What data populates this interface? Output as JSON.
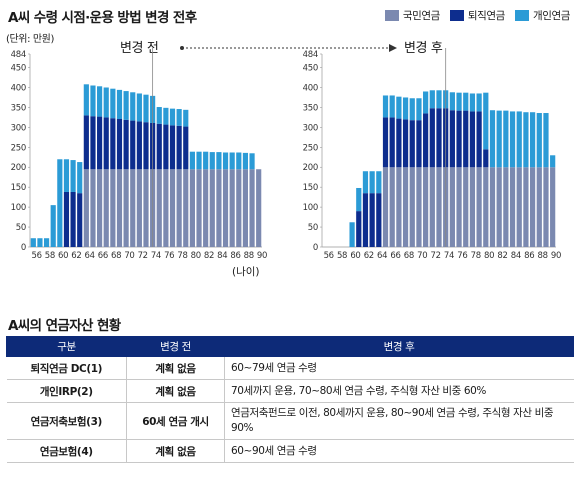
{
  "header": {
    "title": "A씨 수령 시점·운용 방법 변경 전후",
    "unit": "(단위: 만원)",
    "before_label": "변경 전",
    "after_label": "변경 후",
    "age_unit": "(나이)"
  },
  "legend": [
    {
      "label": "국민연금",
      "color": "#7b89b0"
    },
    {
      "label": "퇴직연금",
      "color": "#0d2d8e"
    },
    {
      "label": "개인연금",
      "color": "#2b9bd6"
    }
  ],
  "chart_data": [
    {
      "type": "bar",
      "stacked": true,
      "panel": "변경 전",
      "ylim": [
        0,
        484
      ],
      "yticks": [
        0,
        50,
        100,
        150,
        200,
        250,
        300,
        350,
        400,
        450,
        484
      ],
      "xticks": [
        "56",
        "58",
        "60",
        "62",
        "64",
        "66",
        "68",
        "70",
        "72",
        "74",
        "76",
        "78",
        "80",
        "82",
        "84",
        "86",
        "88",
        "90"
      ],
      "categories": [
        56,
        57,
        58,
        59,
        60,
        61,
        62,
        63,
        64,
        65,
        66,
        67,
        68,
        69,
        70,
        71,
        72,
        73,
        74,
        75,
        76,
        77,
        78,
        79,
        80,
        81,
        82,
        83,
        84,
        85,
        86,
        87,
        88,
        89,
        90
      ],
      "series": [
        {
          "name": "국민연금",
          "values": [
            0,
            0,
            0,
            0,
            0,
            0,
            0,
            0,
            195,
            195,
            195,
            195,
            195,
            195,
            195,
            195,
            195,
            195,
            195,
            195,
            195,
            195,
            195,
            195,
            195,
            195,
            195,
            195,
            195,
            195,
            195,
            195,
            195,
            195,
            195
          ]
        },
        {
          "name": "퇴직연금",
          "values": [
            0,
            0,
            0,
            0,
            0,
            138,
            138,
            135,
            135,
            133,
            132,
            130,
            128,
            126,
            124,
            122,
            120,
            118,
            116,
            114,
            112,
            110,
            109,
            107,
            0,
            0,
            0,
            0,
            0,
            0,
            0,
            0,
            0,
            0,
            0
          ]
        },
        {
          "name": "개인연금",
          "values": [
            22,
            22,
            22,
            105,
            220,
            82,
            80,
            78,
            78,
            77,
            76,
            75,
            74,
            73,
            72,
            71,
            70,
            69,
            68,
            42,
            42,
            42,
            42,
            42,
            44,
            44,
            44,
            43,
            43,
            42,
            42,
            42,
            41,
            40,
            0
          ]
        }
      ]
    },
    {
      "type": "bar",
      "stacked": true,
      "panel": "변경 후",
      "ylim": [
        0,
        484
      ],
      "yticks": [
        0,
        50,
        100,
        150,
        200,
        250,
        300,
        350,
        400,
        450,
        484
      ],
      "xticks": [
        "56",
        "58",
        "60",
        "62",
        "64",
        "66",
        "68",
        "70",
        "72",
        "74",
        "76",
        "78",
        "80",
        "82",
        "84",
        "86",
        "88",
        "90"
      ],
      "categories": [
        56,
        57,
        58,
        59,
        60,
        61,
        62,
        63,
        64,
        65,
        66,
        67,
        68,
        69,
        70,
        71,
        72,
        73,
        74,
        75,
        76,
        77,
        78,
        79,
        80,
        81,
        82,
        83,
        84,
        85,
        86,
        87,
        88,
        89,
        90
      ],
      "series": [
        {
          "name": "국민연금",
          "values": [
            0,
            0,
            0,
            0,
            0,
            0,
            0,
            0,
            0,
            200,
            200,
            200,
            200,
            200,
            200,
            200,
            200,
            200,
            200,
            200,
            200,
            200,
            200,
            200,
            200,
            200,
            200,
            200,
            200,
            200,
            200,
            200,
            200,
            200,
            200
          ]
        },
        {
          "name": "퇴직연금",
          "values": [
            0,
            0,
            0,
            0,
            0,
            90,
            135,
            135,
            135,
            125,
            125,
            122,
            120,
            118,
            118,
            135,
            148,
            148,
            148,
            143,
            142,
            142,
            140,
            140,
            45,
            0,
            0,
            0,
            0,
            0,
            0,
            0,
            0,
            0,
            0
          ]
        },
        {
          "name": "개인연금",
          "values": [
            0,
            0,
            0,
            0,
            62,
            58,
            55,
            55,
            55,
            55,
            55,
            55,
            55,
            55,
            55,
            55,
            45,
            45,
            45,
            45,
            45,
            45,
            45,
            45,
            142,
            143,
            142,
            142,
            140,
            140,
            138,
            138,
            136,
            136,
            30
          ]
        }
      ]
    }
  ],
  "table": {
    "headers": [
      "구분",
      "변경 전",
      "변경 후"
    ],
    "rows": [
      {
        "name": "퇴직연금 DC(1)",
        "before": "계획 없음",
        "after": "60~79세 연금 수령"
      },
      {
        "name": "개인IRP(2)",
        "before": "계획 없음",
        "after": "70세까지 운용, 70~80세 연금 수령, 주식형 자산 비중 60%"
      },
      {
        "name": "연금저축보험(3)",
        "before": "60세 연금 개시",
        "after": "연금저축펀드로 이전, 80세까지 운용, 80~90세 연금 수령, 주식형 자산 비중 90%"
      },
      {
        "name": "연금보험(4)",
        "before": "계획 없음",
        "after": "60~90세 연금 수령"
      }
    ]
  }
}
